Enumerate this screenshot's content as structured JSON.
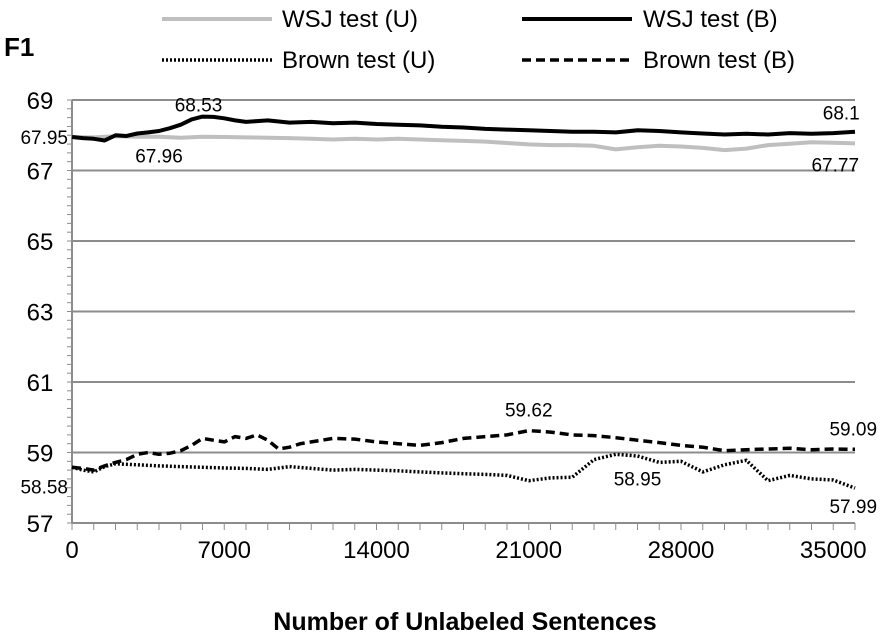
{
  "chart_data": {
    "type": "line",
    "xlabel": "Number of Unlabeled Sentences",
    "ylabel": "F1",
    "xlim": [
      0,
      36000
    ],
    "ylim": [
      57,
      69
    ],
    "x_ticks": [
      0,
      7000,
      14000,
      21000,
      28000,
      35000
    ],
    "x_tick_labels": [
      "0",
      "7000",
      "14000",
      "21000",
      "28000",
      "35000"
    ],
    "y_ticks": [
      57,
      59,
      61,
      63,
      65,
      67,
      69
    ],
    "y_tick_labels": [
      "57",
      "59",
      "61",
      "63",
      "65",
      "67",
      "69"
    ],
    "grid": "horizontal",
    "legend_position": "top",
    "series": [
      {
        "name": "WSJ test (U)",
        "style": "solid-light",
        "color": "#bfbfbf",
        "x": [
          0,
          1000,
          2000,
          3000,
          4000,
          5000,
          6000,
          7000,
          8000,
          9000,
          10000,
          11000,
          12000,
          13000,
          14000,
          15000,
          16000,
          17000,
          18000,
          19000,
          20000,
          21000,
          22000,
          23000,
          24000,
          25000,
          26000,
          27000,
          28000,
          29000,
          30000,
          31000,
          32000,
          33000,
          34000,
          35000,
          36000
        ],
        "y": [
          67.95,
          67.94,
          67.97,
          67.96,
          67.96,
          67.93,
          67.96,
          67.95,
          67.94,
          67.93,
          67.92,
          67.9,
          67.88,
          67.9,
          67.88,
          67.9,
          67.88,
          67.86,
          67.84,
          67.82,
          67.78,
          67.74,
          67.72,
          67.72,
          67.7,
          67.6,
          67.66,
          67.7,
          67.68,
          67.64,
          67.58,
          67.62,
          67.72,
          67.76,
          67.8,
          67.79,
          67.77
        ]
      },
      {
        "name": "WSJ test (B)",
        "style": "solid-dark",
        "color": "#000000",
        "x": [
          0,
          500,
          1000,
          1500,
          2000,
          2500,
          3000,
          3500,
          4000,
          4500,
          5000,
          5500,
          6000,
          6500,
          7000,
          7500,
          8000,
          8500,
          9000,
          10000,
          11000,
          12000,
          13000,
          14000,
          15000,
          16000,
          17000,
          18000,
          19000,
          20000,
          21000,
          22000,
          23000,
          24000,
          25000,
          26000,
          27000,
          28000,
          29000,
          30000,
          31000,
          32000,
          33000,
          34000,
          35000,
          36000
        ],
        "y": [
          67.95,
          67.92,
          67.9,
          67.85,
          68.0,
          67.98,
          68.05,
          68.08,
          68.12,
          68.2,
          68.3,
          68.45,
          68.53,
          68.52,
          68.48,
          68.42,
          68.38,
          68.4,
          68.42,
          68.36,
          68.38,
          68.34,
          68.36,
          68.32,
          68.3,
          68.28,
          68.24,
          68.22,
          68.18,
          68.16,
          68.14,
          68.12,
          68.1,
          68.1,
          68.08,
          68.14,
          68.12,
          68.08,
          68.05,
          68.02,
          68.04,
          68.02,
          68.06,
          68.04,
          68.06,
          68.1
        ]
      },
      {
        "name": "Brown test (U)",
        "style": "dotted",
        "color": "#000000",
        "x": [
          0,
          500,
          1000,
          1500,
          2000,
          3000,
          4000,
          5000,
          6000,
          7000,
          8000,
          9000,
          10000,
          11000,
          12000,
          13000,
          14000,
          15000,
          16000,
          17000,
          18000,
          19000,
          20000,
          21000,
          22000,
          23000,
          24000,
          25000,
          26000,
          27000,
          28000,
          29000,
          30000,
          31000,
          32000,
          33000,
          34000,
          35000,
          36000
        ],
        "y": [
          58.58,
          58.5,
          58.45,
          58.6,
          58.68,
          58.65,
          58.62,
          58.6,
          58.58,
          58.56,
          58.55,
          58.52,
          58.6,
          58.55,
          58.5,
          58.52,
          58.5,
          58.48,
          58.45,
          58.42,
          58.4,
          58.38,
          58.35,
          58.2,
          58.28,
          58.3,
          58.8,
          58.95,
          58.9,
          58.72,
          58.75,
          58.45,
          58.65,
          58.78,
          58.2,
          58.35,
          58.25,
          58.22,
          57.99
        ]
      },
      {
        "name": "Brown test (B)",
        "style": "dashed",
        "color": "#000000",
        "x": [
          0,
          500,
          1000,
          1500,
          2000,
          2500,
          3000,
          3500,
          4000,
          4500,
          5000,
          5500,
          6000,
          6500,
          7000,
          7500,
          8000,
          8500,
          9000,
          9500,
          10000,
          10500,
          11000,
          12000,
          13000,
          14000,
          15000,
          16000,
          17000,
          18000,
          19000,
          20000,
          21000,
          22000,
          23000,
          24000,
          25000,
          26000,
          27000,
          28000,
          29000,
          30000,
          31000,
          32000,
          33000,
          34000,
          35000,
          36000
        ],
        "y": [
          58.58,
          58.55,
          58.5,
          58.62,
          58.72,
          58.8,
          58.95,
          59.0,
          58.95,
          58.98,
          59.05,
          59.2,
          59.4,
          59.35,
          59.3,
          59.45,
          59.4,
          59.5,
          59.35,
          59.1,
          59.15,
          59.25,
          59.3,
          59.4,
          59.38,
          59.3,
          59.25,
          59.2,
          59.28,
          59.4,
          59.45,
          59.5,
          59.62,
          59.58,
          59.5,
          59.48,
          59.42,
          59.35,
          59.28,
          59.2,
          59.15,
          59.05,
          59.08,
          59.1,
          59.12,
          59.08,
          59.1,
          59.09
        ]
      }
    ],
    "annotations": [
      {
        "text": "67.95",
        "series": 0,
        "x": 0,
        "y": 67.95,
        "anchor": "end",
        "dx": -4,
        "dy": 7
      },
      {
        "text": "67.96",
        "series": 0,
        "x": 4000,
        "y": 67.96,
        "anchor": "middle",
        "dx": 0,
        "dy": 26
      },
      {
        "text": "68.53",
        "series": 1,
        "x": 6000,
        "y": 68.53,
        "anchor": "middle",
        "dx": -4,
        "dy": -5
      },
      {
        "text": "68.1",
        "series": 1,
        "x": 35000,
        "y": 68.1,
        "anchor": "middle",
        "dx": 8,
        "dy": -12
      },
      {
        "text": "67.77",
        "series": 0,
        "x": 35000,
        "y": 67.77,
        "anchor": "middle",
        "dx": 2,
        "dy": 28
      },
      {
        "text": "59.62",
        "series": 3,
        "x": 21000,
        "y": 59.62,
        "anchor": "middle",
        "dx": 0,
        "dy": -14
      },
      {
        "text": "59.09",
        "series": 3,
        "x": 35000,
        "y": 59.09,
        "anchor": "middle",
        "dx": 20,
        "dy": -14
      },
      {
        "text": "58.58",
        "series": 2,
        "x": 0,
        "y": 58.58,
        "anchor": "end",
        "dx": -4,
        "dy": 26
      },
      {
        "text": "58.95",
        "series": 2,
        "x": 26000,
        "y": 58.95,
        "anchor": "middle",
        "dx": 0,
        "dy": 31
      },
      {
        "text": "57.99",
        "series": 2,
        "x": 35000,
        "y": 57.99,
        "anchor": "middle",
        "dx": 20,
        "dy": 25
      }
    ]
  }
}
